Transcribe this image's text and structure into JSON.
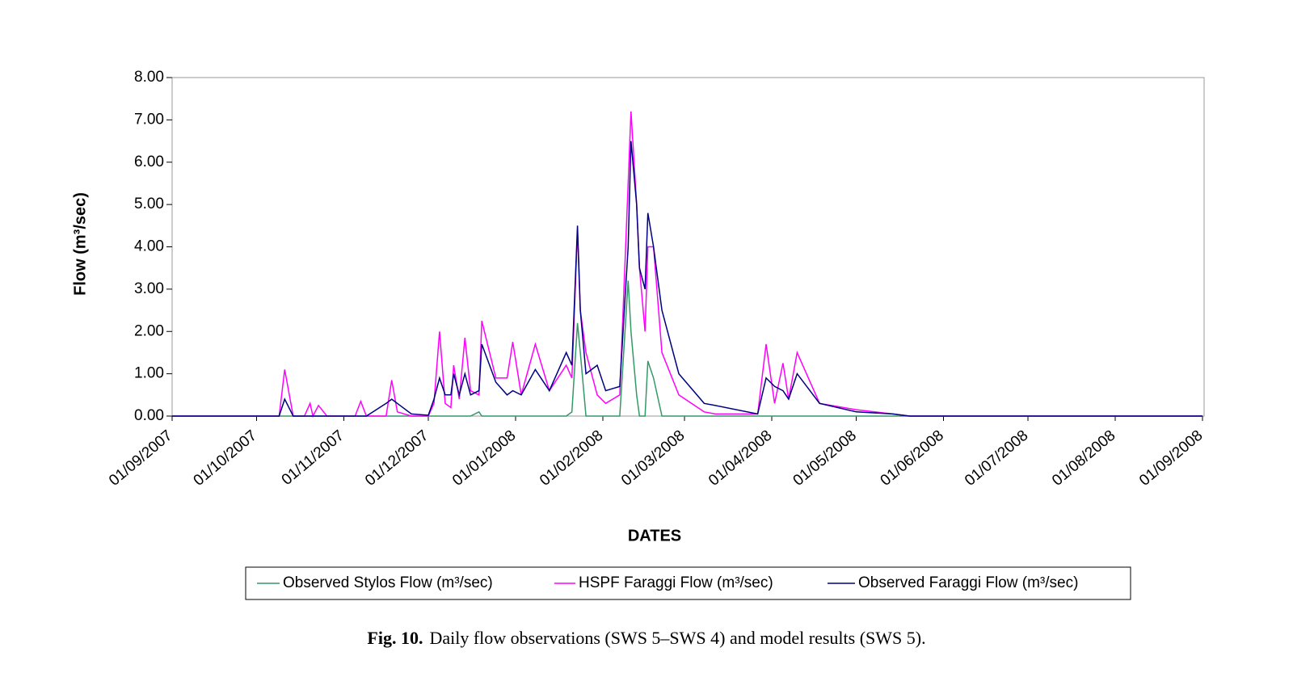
{
  "chart_data": {
    "type": "line",
    "ylabel": "Flow (m³/sec)",
    "xlabel": "DATES",
    "caption_label": "Fig. 10.",
    "caption_text": "Daily flow observations (SWS 5–SWS 4) and model results (SWS 5).",
    "grid": false,
    "x": [
      "2007-09-01",
      "2007-10-09",
      "2007-10-11",
      "2007-10-14",
      "2007-10-18",
      "2007-10-20",
      "2007-10-21",
      "2007-10-23",
      "2007-10-26",
      "2007-11-05",
      "2007-11-07",
      "2007-11-09",
      "2007-11-16",
      "2007-11-18",
      "2007-11-20",
      "2007-11-25",
      "2007-12-01",
      "2007-12-03",
      "2007-12-05",
      "2007-12-07",
      "2007-12-09",
      "2007-12-10",
      "2007-12-12",
      "2007-12-14",
      "2007-12-16",
      "2007-12-19",
      "2007-12-20",
      "2007-12-25",
      "2007-12-29",
      "2007-12-31",
      "2008-01-03",
      "2008-01-08",
      "2008-01-13",
      "2008-01-19",
      "2008-01-21",
      "2008-01-23",
      "2008-01-24",
      "2008-01-26",
      "2008-01-30",
      "2008-02-02",
      "2008-02-07",
      "2008-02-10",
      "2008-02-11",
      "2008-02-13",
      "2008-02-14",
      "2008-02-16",
      "2008-02-17",
      "2008-02-19",
      "2008-02-22",
      "2008-02-28",
      "2008-03-08",
      "2008-03-12",
      "2008-03-27",
      "2008-03-30",
      "2008-04-02",
      "2008-04-05",
      "2008-04-07",
      "2008-04-10",
      "2008-04-18",
      "2008-05-01",
      "2008-05-14",
      "2008-05-20",
      "2008-09-01"
    ],
    "series": [
      {
        "name": "Observed Stylos Flow (m³/sec)",
        "color": "#339966",
        "values": [
          0,
          0,
          0,
          0,
          0,
          0,
          0,
          0,
          0,
          0,
          0,
          0,
          0,
          0,
          0,
          0,
          0,
          0,
          0,
          0,
          0,
          0,
          0,
          0,
          0,
          0.1,
          0,
          0,
          0,
          0,
          0,
          0,
          0,
          0,
          0.1,
          2.2,
          1.5,
          0,
          0,
          0,
          0,
          3.2,
          2.0,
          0.5,
          0,
          0,
          1.3,
          0.9,
          0,
          0,
          0,
          0,
          0,
          0,
          0,
          0,
          0,
          0,
          0,
          0,
          0,
          0,
          0
        ]
      },
      {
        "name": "HSPF Faraggi Flow (m³/sec)",
        "color": "#ff00ff",
        "values": [
          0,
          0,
          1.1,
          0,
          0,
          0.3,
          0,
          0.25,
          0,
          0,
          0.35,
          0,
          0,
          0.85,
          0.1,
          0,
          0,
          0.3,
          2.0,
          0.3,
          0.2,
          1.2,
          0.4,
          1.85,
          0.6,
          0.5,
          2.25,
          0.9,
          0.9,
          1.75,
          0.5,
          1.7,
          0.6,
          1.2,
          0.9,
          4.4,
          2.5,
          1.5,
          0.5,
          0.3,
          0.5,
          5.5,
          7.2,
          5.0,
          3.5,
          2.0,
          4.0,
          4.0,
          1.5,
          0.5,
          0.1,
          0.05,
          0.05,
          1.7,
          0.3,
          1.25,
          0.4,
          1.5,
          0.3,
          0.15,
          0.05,
          0,
          0
        ]
      },
      {
        "name": "Observed Faraggi Flow (m³/sec)",
        "color": "#000080",
        "values": [
          0,
          0,
          0.4,
          0,
          0,
          0,
          0,
          0,
          0,
          0,
          0,
          0,
          0.3,
          0.4,
          0.3,
          0.05,
          0.02,
          0.4,
          0.9,
          0.5,
          0.5,
          1.0,
          0.5,
          1.0,
          0.5,
          0.6,
          1.7,
          0.8,
          0.5,
          0.6,
          0.5,
          1.1,
          0.6,
          1.5,
          1.2,
          4.5,
          2.5,
          1.0,
          1.2,
          0.6,
          0.7,
          4.0,
          6.5,
          5.0,
          3.5,
          3.0,
          4.8,
          4.0,
          2.5,
          1.0,
          0.3,
          0.25,
          0.05,
          0.9,
          0.7,
          0.6,
          0.4,
          1.0,
          0.3,
          0.1,
          0.05,
          0,
          0
        ]
      }
    ],
    "xlim": [
      "2007-09-01",
      "2008-09-01"
    ],
    "xticks": [
      {
        "value": "2007-09-01",
        "label": "01/09/2007"
      },
      {
        "value": "2007-10-01",
        "label": "01/10/2007"
      },
      {
        "value": "2007-11-01",
        "label": "01/11/2007"
      },
      {
        "value": "2007-12-01",
        "label": "01/12/2007"
      },
      {
        "value": "2008-01-01",
        "label": "01/01/2008"
      },
      {
        "value": "2008-02-01",
        "label": "01/02/2008"
      },
      {
        "value": "2008-03-01",
        "label": "01/03/2008"
      },
      {
        "value": "2008-04-01",
        "label": "01/04/2008"
      },
      {
        "value": "2008-05-01",
        "label": "01/05/2008"
      },
      {
        "value": "2008-06-01",
        "label": "01/06/2008"
      },
      {
        "value": "2008-07-01",
        "label": "01/07/2008"
      },
      {
        "value": "2008-08-01",
        "label": "01/08/2008"
      },
      {
        "value": "2008-09-01",
        "label": "01/09/2008"
      }
    ],
    "ylim": [
      0,
      8
    ],
    "yticks": [
      {
        "value": 0,
        "label": "0.00"
      },
      {
        "value": 1,
        "label": "1.00"
      },
      {
        "value": 2,
        "label": "2.00"
      },
      {
        "value": 3,
        "label": "3.00"
      },
      {
        "value": 4,
        "label": "4.00"
      },
      {
        "value": 5,
        "label": "5.00"
      },
      {
        "value": 6,
        "label": "6.00"
      },
      {
        "value": 7,
        "label": "7.00"
      },
      {
        "value": 8,
        "label": "8.00"
      }
    ]
  }
}
